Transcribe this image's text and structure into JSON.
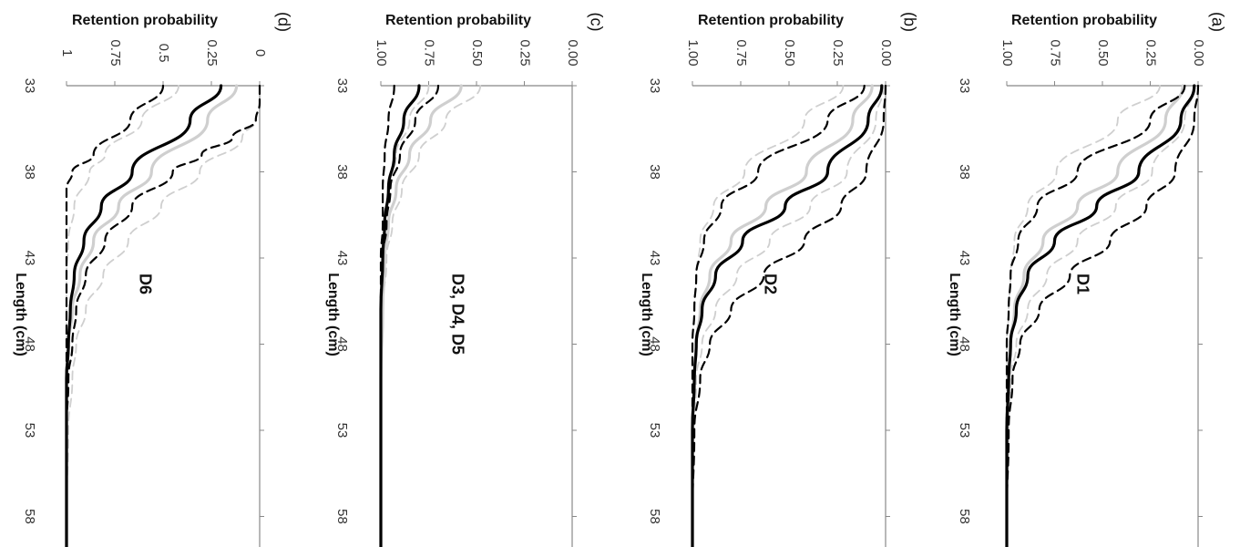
{
  "figure": {
    "colors": {
      "black": "#000000",
      "grey": "#cfcfcf",
      "axis": "#888888"
    }
  },
  "chart_data": [
    {
      "type": "line",
      "panel_label": "(a)",
      "annotation": "D1",
      "xlabel": "Length (cm)",
      "ylabel": "Retention probability",
      "xlim": [
        33,
        60
      ],
      "ylim": [
        0,
        1
      ],
      "xticks": [
        "33",
        "38",
        "43",
        "48",
        "53",
        "58"
      ],
      "yticks": [
        "0.00",
        "0.25",
        "0.50",
        "0.75",
        "1.00"
      ],
      "series": [
        {
          "style": "black-solid",
          "x": [
            33,
            35,
            38,
            40,
            42,
            44,
            46,
            48,
            50,
            53,
            58
          ],
          "y": [
            0.02,
            0.09,
            0.31,
            0.53,
            0.75,
            0.89,
            0.95,
            0.98,
            0.99,
            1.0,
            1.0
          ]
        },
        {
          "style": "black-dashed",
          "x": [
            33,
            35,
            38,
            40,
            42,
            44,
            46,
            48,
            50,
            53,
            58
          ],
          "y": [
            0.0,
            0.02,
            0.12,
            0.27,
            0.46,
            0.67,
            0.83,
            0.93,
            0.97,
            0.99,
            1.0
          ]
        },
        {
          "style": "black-dashed",
          "x": [
            33,
            35,
            38,
            40,
            42,
            44,
            46,
            48,
            50,
            53,
            58
          ],
          "y": [
            0.07,
            0.25,
            0.63,
            0.84,
            0.94,
            0.98,
            0.99,
            1.0,
            1.0,
            1.0,
            1.0
          ]
        },
        {
          "style": "grey-solid",
          "x": [
            33,
            35,
            38,
            40,
            42,
            44,
            46,
            48,
            50,
            53,
            58
          ],
          "y": [
            0.08,
            0.17,
            0.42,
            0.63,
            0.81,
            0.91,
            0.96,
            0.98,
            0.99,
            1.0,
            1.0
          ]
        },
        {
          "style": "grey-dashed",
          "x": [
            33,
            35,
            38,
            40,
            42,
            44,
            46,
            48,
            50,
            53,
            58
          ],
          "y": [
            0.02,
            0.07,
            0.24,
            0.43,
            0.63,
            0.79,
            0.89,
            0.95,
            0.98,
            0.99,
            1.0
          ]
        },
        {
          "style": "grey-dashed",
          "x": [
            33,
            35,
            38,
            40,
            42,
            44,
            46,
            48,
            50,
            53,
            58
          ],
          "y": [
            0.2,
            0.42,
            0.74,
            0.89,
            0.96,
            0.98,
            0.99,
            1.0,
            1.0,
            1.0,
            1.0
          ]
        }
      ]
    },
    {
      "type": "line",
      "panel_label": "(b)",
      "annotation": "D2",
      "xlabel": "Length (cm)",
      "ylabel": "Retention probability",
      "xlim": [
        33,
        60
      ],
      "ylim": [
        0,
        1
      ],
      "xticks": [
        "33",
        "38",
        "43",
        "48",
        "53",
        "58"
      ],
      "yticks": [
        "0.00",
        "0.25",
        "0.50",
        "0.75",
        "1.00"
      ],
      "series": [
        {
          "style": "black-solid",
          "x": [
            33,
            35,
            38,
            40,
            42,
            44,
            46,
            48,
            50,
            53,
            58
          ],
          "y": [
            0.02,
            0.09,
            0.3,
            0.52,
            0.74,
            0.88,
            0.95,
            0.98,
            0.99,
            1.0,
            1.0
          ]
        },
        {
          "style": "black-dashed",
          "x": [
            33,
            35,
            38,
            40,
            42,
            44,
            46,
            48,
            50,
            53,
            58
          ],
          "y": [
            0.0,
            0.01,
            0.1,
            0.23,
            0.42,
            0.63,
            0.8,
            0.91,
            0.96,
            0.99,
            1.0
          ]
        },
        {
          "style": "black-dashed",
          "x": [
            33,
            35,
            38,
            40,
            42,
            44,
            46,
            48,
            50,
            53,
            58
          ],
          "y": [
            0.11,
            0.3,
            0.66,
            0.85,
            0.94,
            0.98,
            0.99,
            1.0,
            1.0,
            1.0,
            1.0
          ]
        },
        {
          "style": "grey-solid",
          "x": [
            33,
            35,
            38,
            40,
            42,
            44,
            46,
            48,
            50,
            53,
            58
          ],
          "y": [
            0.07,
            0.17,
            0.41,
            0.62,
            0.8,
            0.91,
            0.96,
            0.98,
            0.99,
            1.0,
            1.0
          ]
        },
        {
          "style": "grey-dashed",
          "x": [
            33,
            35,
            38,
            40,
            42,
            44,
            46,
            48,
            50,
            53,
            58
          ],
          "y": [
            0.01,
            0.05,
            0.2,
            0.39,
            0.6,
            0.77,
            0.88,
            0.95,
            0.98,
            0.99,
            1.0
          ]
        },
        {
          "style": "grey-dashed",
          "x": [
            33,
            35,
            38,
            40,
            42,
            44,
            46,
            48,
            50,
            53,
            58
          ],
          "y": [
            0.22,
            0.42,
            0.73,
            0.89,
            0.96,
            0.98,
            0.99,
            1.0,
            1.0,
            1.0,
            1.0
          ]
        }
      ]
    },
    {
      "type": "line",
      "panel_label": "(c)",
      "annotation": "D3, D4, D5",
      "xlabel": "Length (cm)",
      "ylabel": "Retention probability",
      "xlim": [
        33,
        60
      ],
      "ylim": [
        0,
        1
      ],
      "xticks": [
        "33",
        "38",
        "43",
        "48",
        "53",
        "58"
      ],
      "yticks": [
        "0.00",
        "0.25",
        "0.50",
        "0.75",
        "1.00"
      ],
      "series": [
        {
          "style": "black-solid",
          "x": [
            33,
            35,
            37,
            39,
            41,
            43,
            46,
            50,
            58
          ],
          "y": [
            0.8,
            0.88,
            0.93,
            0.96,
            0.98,
            0.99,
            1.0,
            1.0,
            1.0
          ]
        },
        {
          "style": "black-dashed",
          "x": [
            33,
            35,
            37,
            39,
            41,
            43,
            46,
            50,
            58
          ],
          "y": [
            0.7,
            0.82,
            0.9,
            0.95,
            0.97,
            0.99,
            1.0,
            1.0,
            1.0
          ]
        },
        {
          "style": "black-dashed",
          "x": [
            33,
            35,
            37,
            39,
            41,
            43,
            46,
            50,
            58
          ],
          "y": [
            0.93,
            0.96,
            0.98,
            0.99,
            0.99,
            1.0,
            1.0,
            1.0,
            1.0
          ]
        },
        {
          "style": "grey-solid",
          "x": [
            33,
            35,
            37,
            39,
            41,
            43,
            46,
            50,
            58
          ],
          "y": [
            0.58,
            0.74,
            0.85,
            0.92,
            0.96,
            0.98,
            0.99,
            1.0,
            1.0
          ]
        },
        {
          "style": "grey-dashed",
          "x": [
            33,
            35,
            37,
            39,
            41,
            43,
            46,
            50,
            58
          ],
          "y": [
            0.48,
            0.66,
            0.8,
            0.89,
            0.94,
            0.97,
            0.99,
            1.0,
            1.0
          ]
        },
        {
          "style": "grey-dashed",
          "x": [
            33,
            35,
            37,
            39,
            41,
            43,
            46,
            50,
            58
          ],
          "y": [
            0.75,
            0.85,
            0.92,
            0.96,
            0.98,
            0.99,
            1.0,
            1.0,
            1.0
          ]
        }
      ]
    },
    {
      "type": "line",
      "panel_label": "(d)",
      "annotation": "D6",
      "xlabel": "Length (cm)",
      "ylabel": "Retention probability",
      "xlim": [
        33,
        60
      ],
      "ylim": [
        0,
        1
      ],
      "xticks": [
        "33",
        "38",
        "43",
        "48",
        "53",
        "58"
      ],
      "yticks": [
        "0",
        "0.25",
        "0.5",
        "0.75",
        "1"
      ],
      "series": [
        {
          "style": "black-solid",
          "x": [
            33,
            35,
            38,
            40,
            42,
            44,
            46,
            48,
            50,
            53,
            58
          ],
          "y": [
            0.2,
            0.36,
            0.66,
            0.82,
            0.91,
            0.96,
            0.98,
            0.99,
            1.0,
            1.0,
            1.0
          ]
        },
        {
          "style": "black-dashed",
          "x": [
            33,
            34,
            35,
            36,
            37,
            38,
            40,
            42,
            44,
            46,
            48,
            50,
            53,
            58
          ],
          "y": [
            0.0,
            0.0,
            0.02,
            0.14,
            0.3,
            0.45,
            0.66,
            0.8,
            0.9,
            0.95,
            0.97,
            0.99,
            1.0,
            1.0
          ]
        },
        {
          "style": "black-dashed",
          "x": [
            33,
            35,
            37,
            38,
            39,
            40,
            42,
            46,
            58
          ],
          "y": [
            0.5,
            0.67,
            0.86,
            0.97,
            1.0,
            1.0,
            1.0,
            1.0,
            1.0
          ]
        },
        {
          "style": "grey-solid",
          "x": [
            33,
            35,
            38,
            40,
            42,
            44,
            46,
            48,
            50,
            53,
            58
          ],
          "y": [
            0.12,
            0.27,
            0.56,
            0.73,
            0.86,
            0.93,
            0.97,
            0.99,
            1.0,
            1.0,
            1.0
          ]
        },
        {
          "style": "grey-dashed",
          "x": [
            33,
            34,
            35,
            36,
            38,
            40,
            42,
            44,
            46,
            48,
            50,
            53,
            58
          ],
          "y": [
            0.0,
            0.0,
            0.02,
            0.09,
            0.31,
            0.51,
            0.68,
            0.81,
            0.9,
            0.95,
            0.97,
            0.99,
            1.0
          ]
        },
        {
          "style": "grey-dashed",
          "x": [
            33,
            35,
            37,
            38,
            40,
            42,
            44,
            46,
            58
          ],
          "y": [
            0.42,
            0.61,
            0.8,
            0.88,
            0.96,
            0.99,
            1.0,
            1.0,
            1.0
          ]
        }
      ]
    }
  ]
}
